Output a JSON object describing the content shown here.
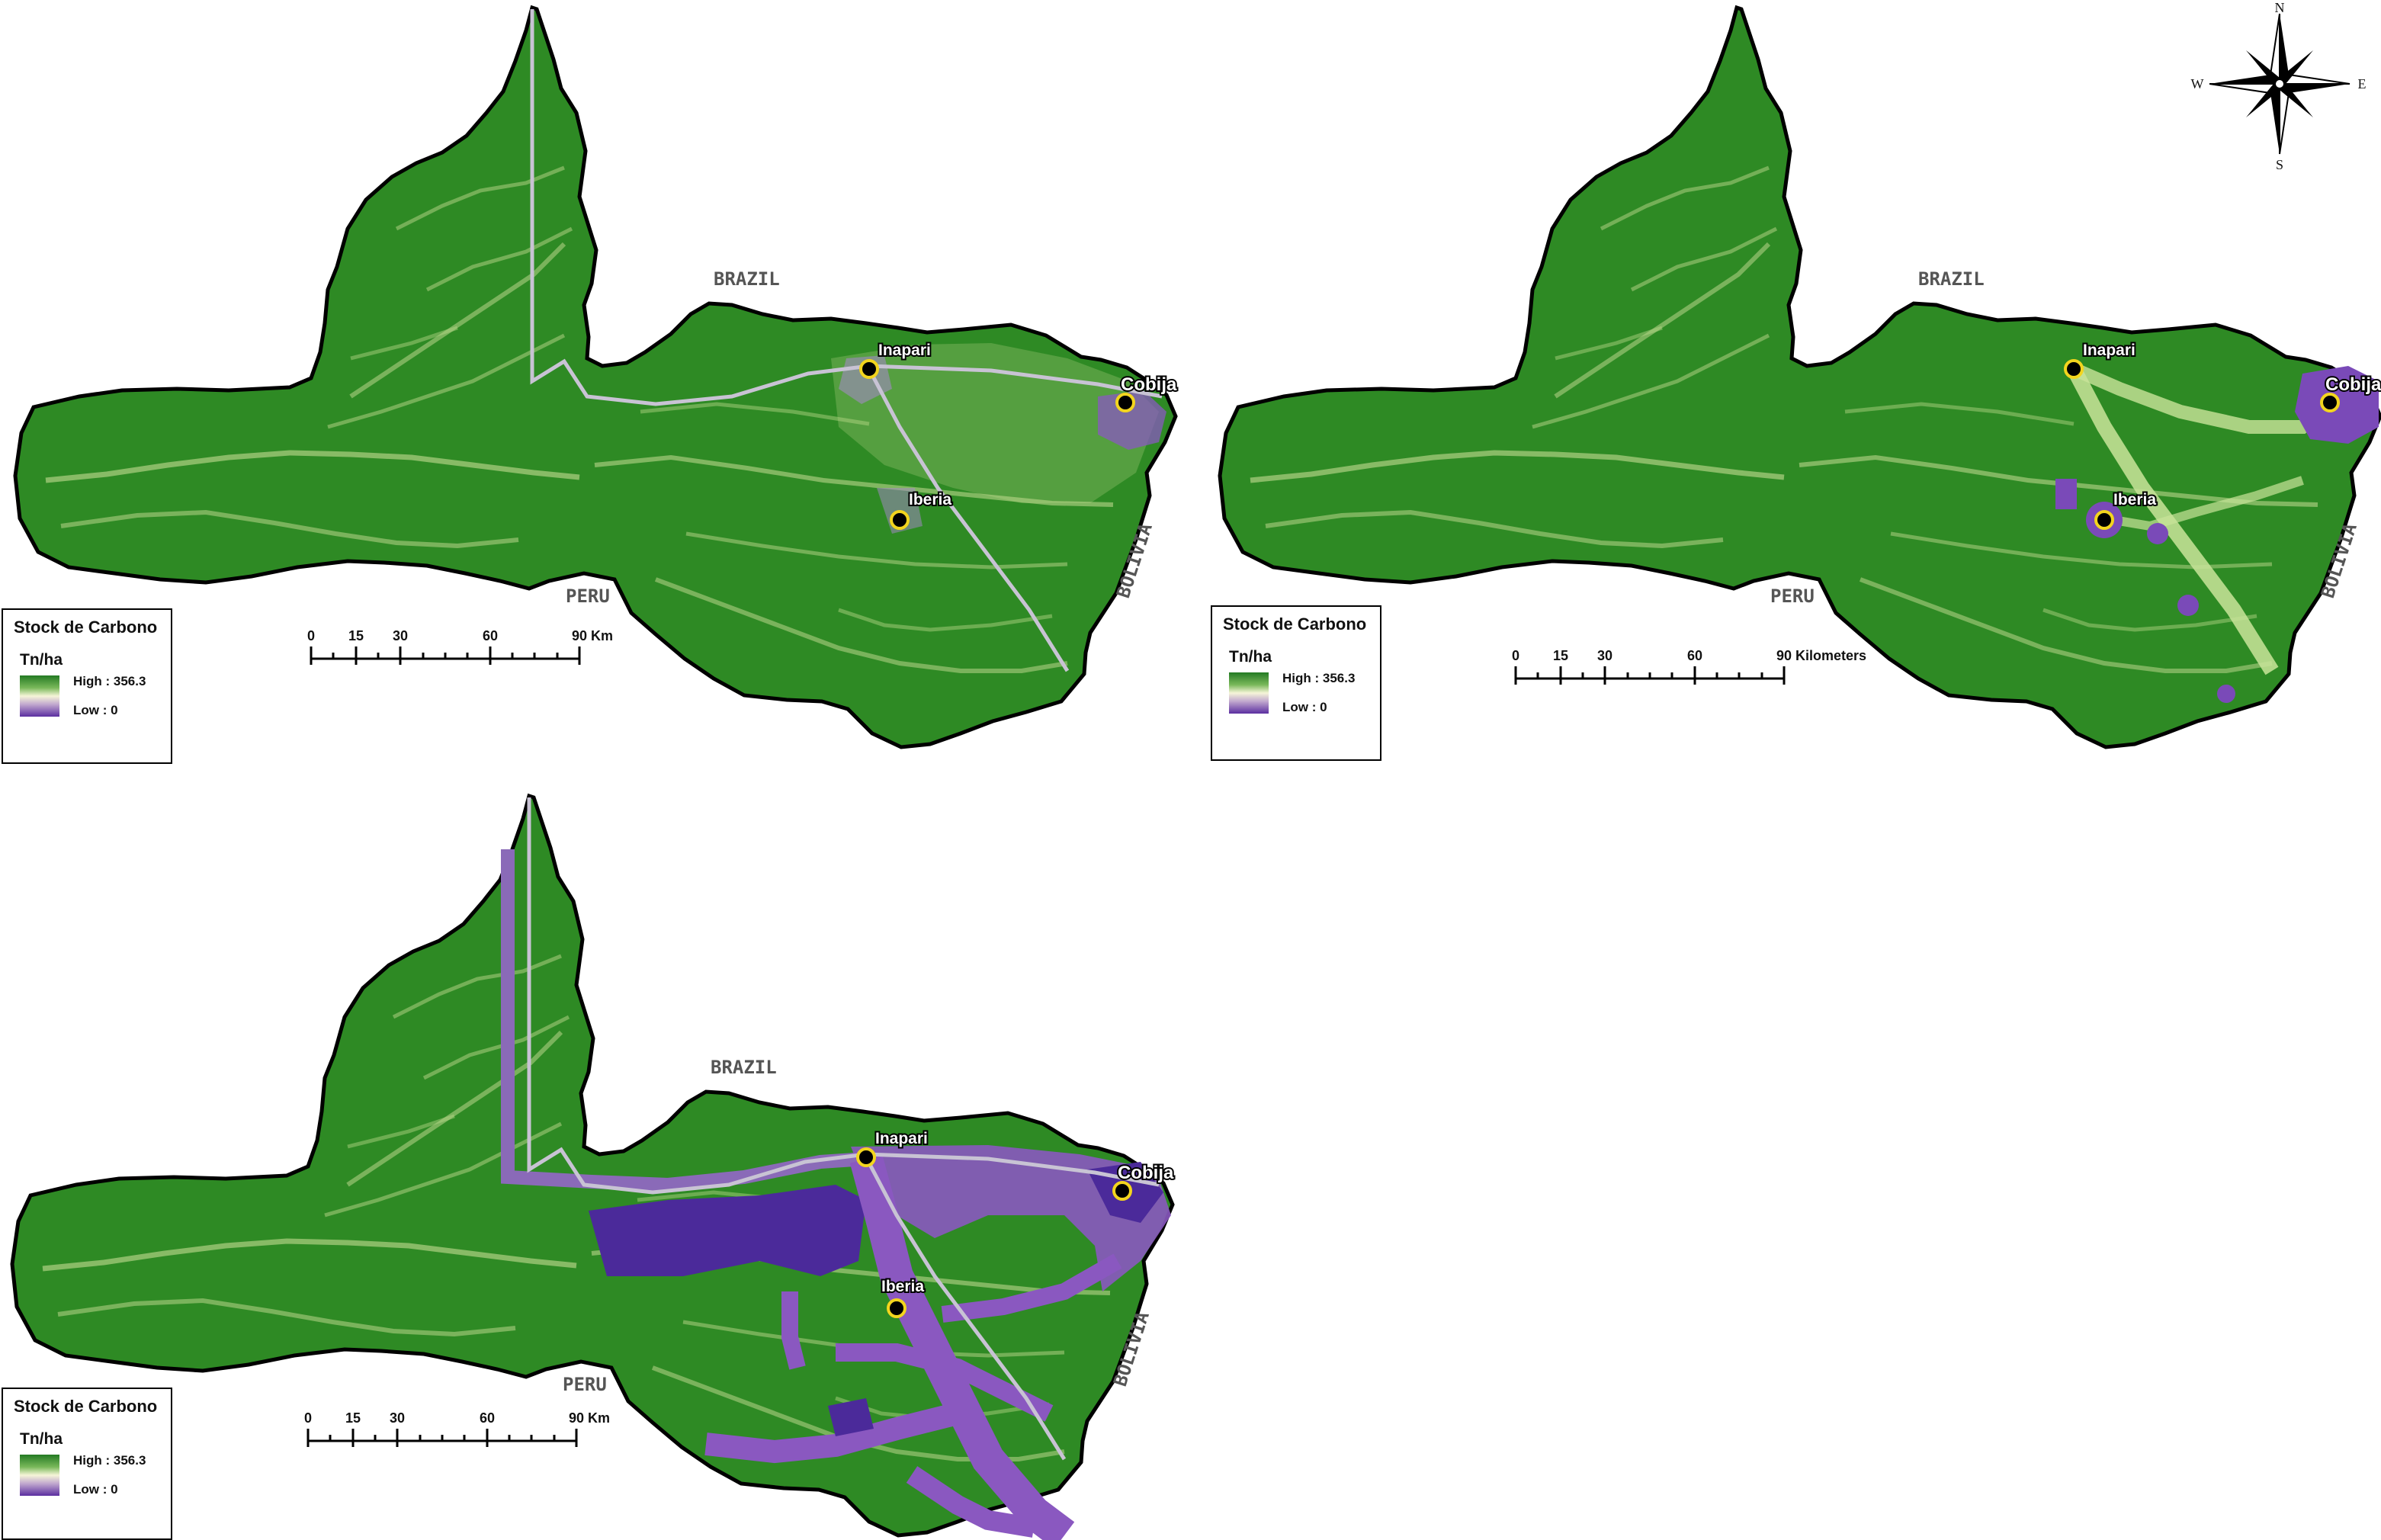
{
  "labels": {
    "country_brazil": "BRAZIL",
    "country_peru": "PERU",
    "country_bolivia": "BOLIVIA",
    "city_inapari": "Inapari",
    "city_cobija": "Cobija",
    "city_iberia": "Iberia"
  },
  "legend": {
    "title": "Stock de Carbono",
    "unit": "Tn/ha",
    "high": "High : 356.3",
    "low": "Low : 0"
  },
  "scalebar_top_left": {
    "ticks": [
      "0",
      "15",
      "30",
      "60",
      "90 Km"
    ]
  },
  "scalebar_top_right": {
    "ticks": [
      "0",
      "15",
      "30",
      "60",
      "90 Kilometers"
    ]
  },
  "scalebar_bottom": {
    "ticks": [
      "0",
      "15",
      "30",
      "60",
      "90 Km"
    ]
  },
  "compass": {
    "n": "N",
    "s": "S",
    "e": "E",
    "w": "W"
  },
  "colors": {
    "forest_green": "#2e8a24",
    "light_green": "#b9d68a",
    "low_carbon_purple": "#8a58c0",
    "deep_purple": "#4b2a9a",
    "boundary": "#000000"
  }
}
